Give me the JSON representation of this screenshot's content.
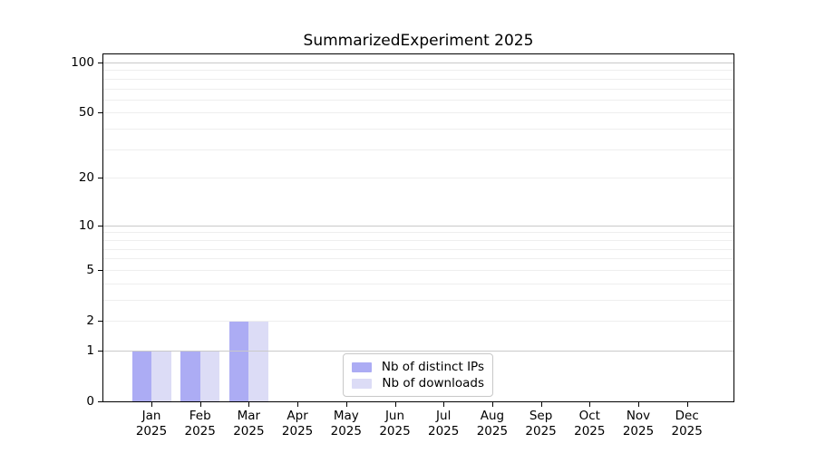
{
  "chart_data": {
    "type": "bar",
    "title": "SummarizedExperiment 2025",
    "categories": [
      "Jan 2025",
      "Feb 2025",
      "Mar 2025",
      "Apr 2025",
      "May 2025",
      "Jun 2025",
      "Jul 2025",
      "Aug 2025",
      "Sep 2025",
      "Oct 2025",
      "Nov 2025",
      "Dec 2025"
    ],
    "series": [
      {
        "name": "Nb of distinct IPs",
        "color": "#acacf4",
        "values": [
          1,
          1,
          2,
          0,
          0,
          0,
          0,
          0,
          0,
          0,
          0,
          0
        ]
      },
      {
        "name": "Nb of downloads",
        "color": "#dcdcf6",
        "values": [
          1,
          1,
          2,
          0,
          0,
          0,
          0,
          0,
          0,
          0,
          0,
          0
        ]
      }
    ],
    "y_axis": {
      "scale": "log1p",
      "ticks": [
        {
          "value": 0,
          "label": "0"
        },
        {
          "value": 1,
          "label": "1"
        },
        {
          "value": 2,
          "label": "2"
        },
        {
          "value": 5,
          "label": "5"
        },
        {
          "value": 10,
          "label": "10"
        },
        {
          "value": 20,
          "label": "20"
        },
        {
          "value": 50,
          "label": "50"
        },
        {
          "value": 100,
          "label": "100"
        }
      ],
      "major_gridlines": [
        1,
        10,
        100
      ],
      "minor_gridlines": [
        3,
        4,
        6,
        7,
        8,
        9,
        30,
        40,
        60,
        70,
        80,
        90
      ],
      "ylim": [
        0,
        115
      ]
    },
    "legend": {
      "position": "lower center inside plot"
    },
    "colors": {
      "background": "#ffffff",
      "spine": "#000000",
      "text": "#000000",
      "grid_major": "#c9c9c9",
      "grid_minor": "#eeeeee",
      "legend_border": "#c8c8c8"
    }
  }
}
